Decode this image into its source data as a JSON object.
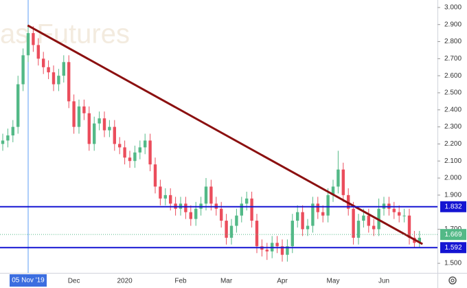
{
  "chart_data": {
    "type": "candlestick",
    "watermark": "as Futures",
    "categories": [
      null,
      null,
      null,
      null,
      null,
      "05 Nov '19",
      null,
      null,
      null,
      null,
      null,
      null,
      null,
      null,
      "Dec",
      null,
      null,
      null,
      null,
      null,
      null,
      null,
      null,
      null,
      "2020",
      null,
      null,
      null,
      null,
      null,
      null,
      null,
      null,
      null,
      null,
      "Feb",
      null,
      null,
      null,
      null,
      null,
      null,
      null,
      null,
      "Mar",
      null,
      null,
      null,
      null,
      null,
      null,
      null,
      null,
      null,
      null,
      "Apr",
      null,
      null,
      null,
      null,
      null,
      null,
      null,
      null,
      null,
      "May",
      null,
      null,
      null,
      null,
      null,
      null,
      null,
      null,
      null,
      "Jun",
      null,
      null,
      null,
      null,
      null,
      null,
      null
    ],
    "crosshair_index": 5,
    "open": [
      2.2,
      2.22,
      2.25,
      2.3,
      2.55,
      2.72,
      2.85,
      2.78,
      2.7,
      2.65,
      2.62,
      2.55,
      2.6,
      2.68,
      2.45,
      2.3,
      2.42,
      2.38,
      2.2,
      2.32,
      2.35,
      2.28,
      2.3,
      2.2,
      2.18,
      2.12,
      2.1,
      2.15,
      2.18,
      2.22,
      2.08,
      1.95,
      1.88,
      1.9,
      1.85,
      1.82,
      1.85,
      1.8,
      1.76,
      1.82,
      1.85,
      1.95,
      1.85,
      1.82,
      1.75,
      1.65,
      1.72,
      1.78,
      1.85,
      1.88,
      1.75,
      1.6,
      1.58,
      1.57,
      1.62,
      1.6,
      1.55,
      1.6,
      1.75,
      1.8,
      1.7,
      1.72,
      1.85,
      1.8,
      1.78,
      1.9,
      1.95,
      2.05,
      1.9,
      1.82,
      1.65,
      1.75,
      1.78,
      1.72,
      1.7,
      1.82,
      1.85,
      1.82,
      1.8,
      1.78,
      1.78,
      1.65,
      1.62
    ],
    "high": [
      2.26,
      2.29,
      2.34,
      2.6,
      2.76,
      2.9,
      2.89,
      2.82,
      2.74,
      2.69,
      2.66,
      2.64,
      2.72,
      2.72,
      2.49,
      2.46,
      2.46,
      2.42,
      2.36,
      2.39,
      2.39,
      2.34,
      2.34,
      2.24,
      2.22,
      2.16,
      2.19,
      2.22,
      2.26,
      2.26,
      2.12,
      1.99,
      1.94,
      1.94,
      1.89,
      1.89,
      1.89,
      1.84,
      1.86,
      1.89,
      2.0,
      1.99,
      1.89,
      1.86,
      1.79,
      1.76,
      1.82,
      1.89,
      1.92,
      1.92,
      1.79,
      1.64,
      1.62,
      1.66,
      1.66,
      1.64,
      1.64,
      1.79,
      1.84,
      1.84,
      1.76,
      1.89,
      1.89,
      1.84,
      1.94,
      1.99,
      2.16,
      2.09,
      1.94,
      1.86,
      1.79,
      1.82,
      1.82,
      1.76,
      1.88,
      1.89,
      1.89,
      1.86,
      1.84,
      1.82,
      1.82,
      1.69,
      1.69
    ],
    "low": [
      2.16,
      2.18,
      2.21,
      2.26,
      2.51,
      2.68,
      2.74,
      2.66,
      2.61,
      2.58,
      2.51,
      2.51,
      2.56,
      2.41,
      2.26,
      2.26,
      2.34,
      2.16,
      2.16,
      2.28,
      2.24,
      2.24,
      2.16,
      2.14,
      2.08,
      2.06,
      2.06,
      2.11,
      2.14,
      2.04,
      1.91,
      1.84,
      1.84,
      1.81,
      1.78,
      1.78,
      1.76,
      1.72,
      1.72,
      1.78,
      1.81,
      1.81,
      1.78,
      1.71,
      1.61,
      1.61,
      1.68,
      1.74,
      1.81,
      1.71,
      1.56,
      1.54,
      1.52,
      1.53,
      1.56,
      1.51,
      1.51,
      1.56,
      1.71,
      1.66,
      1.66,
      1.68,
      1.76,
      1.74,
      1.74,
      1.86,
      1.91,
      1.86,
      1.78,
      1.61,
      1.61,
      1.71,
      1.68,
      1.66,
      1.66,
      1.78,
      1.78,
      1.76,
      1.74,
      1.74,
      1.61,
      1.59,
      1.59
    ],
    "close": [
      2.22,
      2.25,
      2.3,
      2.55,
      2.72,
      2.85,
      2.78,
      2.7,
      2.65,
      2.62,
      2.55,
      2.6,
      2.68,
      2.45,
      2.3,
      2.42,
      2.38,
      2.2,
      2.32,
      2.35,
      2.28,
      2.3,
      2.2,
      2.18,
      2.12,
      2.1,
      2.15,
      2.18,
      2.22,
      2.08,
      1.95,
      1.88,
      1.9,
      1.85,
      1.82,
      1.85,
      1.8,
      1.76,
      1.82,
      1.85,
      1.95,
      1.85,
      1.82,
      1.75,
      1.65,
      1.72,
      1.78,
      1.85,
      1.88,
      1.75,
      1.6,
      1.58,
      1.57,
      1.62,
      1.6,
      1.55,
      1.6,
      1.75,
      1.8,
      1.7,
      1.72,
      1.85,
      1.8,
      1.78,
      1.9,
      1.95,
      2.05,
      1.9,
      1.82,
      1.65,
      1.75,
      1.78,
      1.72,
      1.7,
      1.82,
      1.85,
      1.82,
      1.8,
      1.78,
      1.78,
      1.65,
      1.62,
      1.65
    ],
    "up_color": "#53b987",
    "down_color": "#eb4d5c",
    "ylim": [
      1.444,
      3.044
    ],
    "yticks": [
      {
        "value": 1.5,
        "label": "1.500"
      },
      {
        "value": 1.7,
        "label": "1.700"
      },
      {
        "value": 1.9,
        "label": "1.900"
      },
      {
        "value": 2.0,
        "label": "2.000"
      },
      {
        "value": 2.1,
        "label": "2.100"
      },
      {
        "value": 2.2,
        "label": "2.200"
      },
      {
        "value": 2.3,
        "label": "2.300"
      },
      {
        "value": 2.4,
        "label": "2.400"
      },
      {
        "value": 2.5,
        "label": "2.500"
      },
      {
        "value": 2.6,
        "label": "2.600"
      },
      {
        "value": 2.7,
        "label": "2.700"
      },
      {
        "value": 2.8,
        "label": "2.800"
      },
      {
        "value": 2.9,
        "label": "2.900"
      },
      {
        "value": 3.0,
        "label": "3.000"
      }
    ],
    "hlines": [
      {
        "value": 1.832,
        "color": "#1414d2"
      },
      {
        "value": 1.592,
        "color": "#1414d2"
      }
    ],
    "last_price": {
      "value": 1.669,
      "color": "#53b987"
    },
    "trendline": {
      "x": [
        4.9,
        82.6
      ],
      "values": [
        2.895,
        1.613
      ],
      "color": "#8b1010"
    }
  }
}
